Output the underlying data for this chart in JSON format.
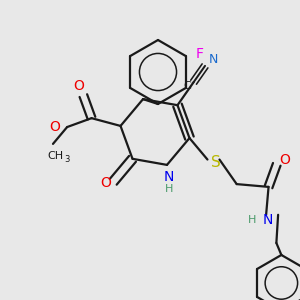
{
  "bg_color": "#e8e8e8",
  "bond_color": "#1a1a1a",
  "bond_width": 1.6,
  "colors": {
    "C": "#1a1a1a",
    "N": "#0000ee",
    "O": "#ee0000",
    "F": "#ee00ee",
    "S": "#b8b800",
    "H": "#4a9a6a",
    "CN_N": "#1a6acd"
  }
}
